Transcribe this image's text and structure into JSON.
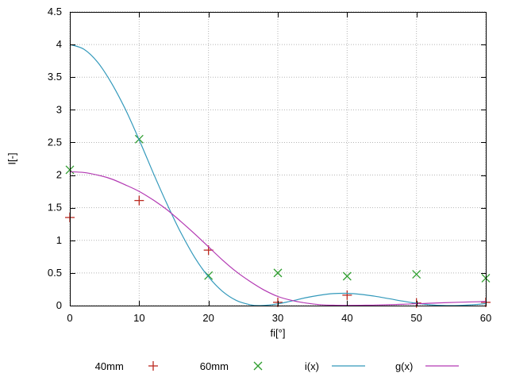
{
  "chart_data": {
    "type": "line",
    "title": "",
    "xlabel": "fi[°]",
    "ylabel": "I[-]",
    "xlim": [
      0,
      60
    ],
    "ylim": [
      0,
      4.5
    ],
    "grid": true,
    "legend_position": "bottom",
    "xtick_values": [
      0,
      10,
      20,
      30,
      40,
      50,
      60
    ],
    "xtick_labels": [
      "0",
      "10",
      "20",
      "30",
      "40",
      "50",
      "60"
    ],
    "ytick_values": [
      0,
      0.5,
      1,
      1.5,
      2,
      2.5,
      3,
      3.5,
      4,
      4.5
    ],
    "ytick_labels": [
      "0",
      "0.5",
      "1",
      "1.5",
      "2",
      "2.5",
      "3",
      "3.5",
      "4",
      "4.5"
    ],
    "colors": {
      "axis": "#000000",
      "grid": "#b5b5b5",
      "background": "#ffffff"
    },
    "series": [
      {
        "name": "40mm",
        "type": "scatter",
        "marker": "plus",
        "color": "#bb2a20",
        "x": [
          0,
          10,
          20,
          30,
          40,
          50,
          60
        ],
        "y": [
          1.35,
          1.61,
          0.85,
          0.05,
          0.16,
          0.04,
          0.05
        ]
      },
      {
        "name": "60mm",
        "type": "scatter",
        "marker": "x",
        "color": "#2f9e2f",
        "x": [
          0,
          10,
          20,
          30,
          40,
          50,
          60
        ],
        "y": [
          2.08,
          2.55,
          0.46,
          0.5,
          0.45,
          0.48,
          0.42
        ]
      },
      {
        "name": "i(x)",
        "type": "line",
        "color": "#3399bb",
        "x": [
          0,
          2,
          4,
          6,
          8,
          10,
          12,
          14,
          16,
          18,
          20,
          22,
          24,
          26,
          27.5,
          30,
          32,
          34,
          36,
          38,
          40,
          42,
          44,
          46,
          48,
          50,
          52,
          54,
          55,
          56,
          58,
          60
        ],
        "y": [
          4.0,
          3.93,
          3.73,
          3.41,
          3.01,
          2.54,
          2.04,
          1.56,
          1.12,
          0.74,
          0.44,
          0.22,
          0.08,
          0.013,
          0,
          0.027,
          0.071,
          0.12,
          0.158,
          0.184,
          0.188,
          0.172,
          0.143,
          0.107,
          0.069,
          0.036,
          0.012,
          0.001,
          0,
          0.002,
          0.012,
          0.03
        ]
      },
      {
        "name": "g(x)",
        "type": "line",
        "color": "#b339b3",
        "x": [
          0,
          2,
          4,
          6,
          8,
          10,
          12,
          14,
          16,
          18,
          20,
          22,
          24,
          26,
          28,
          30,
          32,
          34,
          36,
          38,
          40,
          42,
          44,
          46,
          48,
          50,
          52,
          54,
          56,
          58,
          60
        ],
        "y": [
          2.05,
          2.04,
          2.0,
          1.94,
          1.85,
          1.75,
          1.62,
          1.47,
          1.29,
          1.1,
          0.9,
          0.7,
          0.52,
          0.37,
          0.24,
          0.14,
          0.08,
          0.04,
          0.015,
          0.006,
          0.004,
          0.005,
          0.008,
          0.013,
          0.02,
          0.028,
          0.036,
          0.044,
          0.051,
          0.057,
          0.062
        ]
      }
    ]
  }
}
